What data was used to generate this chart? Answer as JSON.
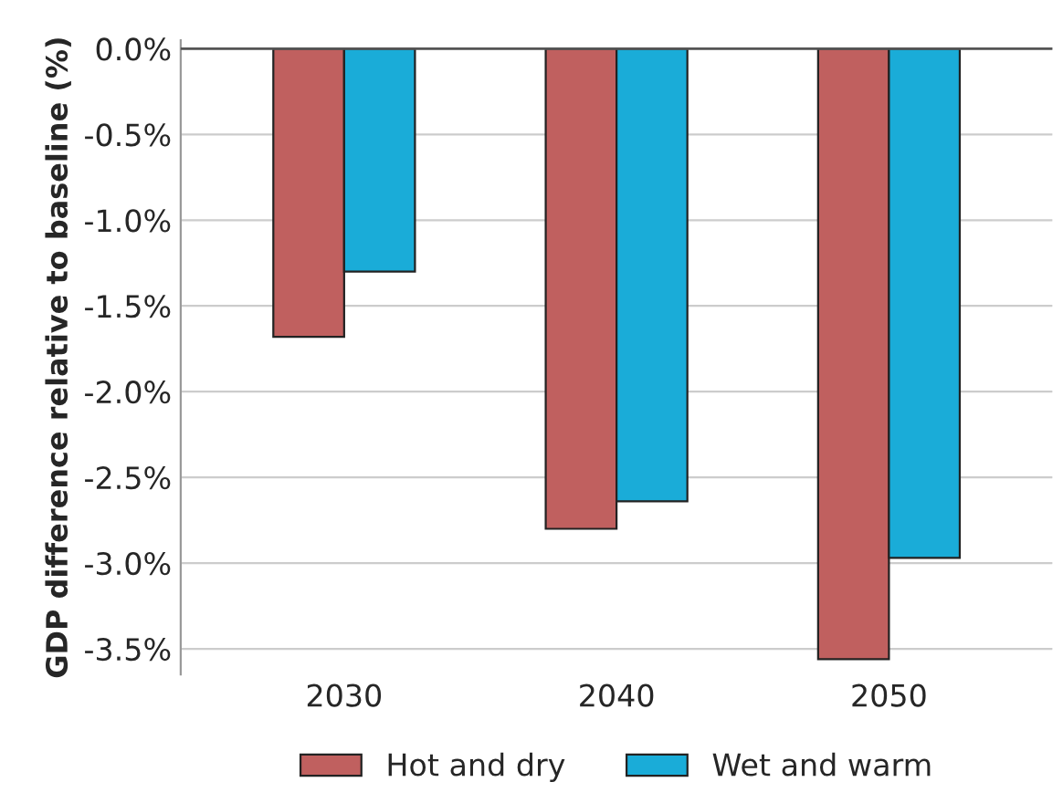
{
  "chart_data": {
    "type": "bar",
    "ylabel": "GDP difference relative to baseline (%)",
    "categories": [
      "2030",
      "2040",
      "2050"
    ],
    "series": [
      {
        "name": "Hot and dry",
        "color": "#c0605f",
        "values": [
          -1.68,
          -2.8,
          -3.56
        ]
      },
      {
        "name": "Wet and warm",
        "color": "#1aacd8",
        "values": [
          -1.3,
          -2.64,
          -2.97
        ]
      }
    ],
    "ylim": [
      -3.65,
      0.05
    ],
    "yticks": [
      {
        "value": 0,
        "label": "0.0%"
      },
      {
        "value": -0.5,
        "label": "-0.5%"
      },
      {
        "value": -1.0,
        "label": "-1.0%"
      },
      {
        "value": -1.5,
        "label": "-1.5%"
      },
      {
        "value": -2.0,
        "label": "-2.0%"
      },
      {
        "value": -2.5,
        "label": "-2.5%"
      },
      {
        "value": -3.0,
        "label": "-3.0%"
      },
      {
        "value": -3.5,
        "label": "-3.5%"
      }
    ],
    "grid": "y",
    "legend": "bottom"
  }
}
